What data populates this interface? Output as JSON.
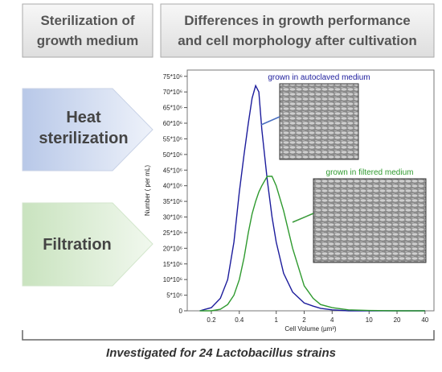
{
  "headers": {
    "left": [
      "Sterilization of",
      "growth medium"
    ],
    "right": [
      "Differences in growth performance",
      "and cell morphology after cultivation"
    ]
  },
  "methods": [
    {
      "label": [
        "Heat",
        "sterilization"
      ]
    },
    {
      "label": [
        "Filtration"
      ]
    }
  ],
  "footer": "Investigated for 24 Lactobacillus strains",
  "chart_data": {
    "type": "line",
    "xlabel": "Cell Volume (µm³)",
    "ylabel": "Number ( per mL)",
    "xscale": "log",
    "x": [
      0.15,
      0.2,
      0.25,
      0.3,
      0.35,
      0.4,
      0.45,
      0.5,
      0.55,
      0.6,
      0.65,
      0.7,
      0.8,
      0.9,
      1,
      1.2,
      1.5,
      2,
      2.5,
      3,
      4,
      6,
      10,
      20,
      40
    ],
    "series": [
      {
        "name": "grown in autoclaved medium",
        "color": "#1c1c9c",
        "values": [
          0,
          1000000,
          4000000,
          10000000,
          22000000,
          38000000,
          50000000,
          60000000,
          68000000,
          72000000,
          70000000,
          58000000,
          42000000,
          30000000,
          22000000,
          12000000,
          6000000,
          2500000,
          1500000,
          800000,
          300000,
          0,
          0,
          0,
          0
        ]
      },
      {
        "name": "grown in filtered medium",
        "color": "#2f9a2f",
        "values": [
          0,
          0,
          500000,
          2000000,
          5000000,
          10000000,
          17000000,
          25000000,
          31000000,
          35000000,
          38000000,
          40000000,
          43000000,
          43000000,
          40000000,
          32000000,
          20000000,
          8000000,
          4000000,
          2000000,
          1000000,
          300000,
          100000,
          0,
          0
        ]
      }
    ],
    "xlim": [
      0.11,
      50
    ],
    "xticks": [
      0.2,
      0.4,
      1,
      2,
      4,
      10,
      20,
      40
    ],
    "ylim": [
      0,
      77000000
    ],
    "yticks": [
      {
        "value": 0,
        "label": "0"
      },
      {
        "value": 5000000,
        "label": "5*10⁶"
      },
      {
        "value": 10000000,
        "label": "10*10⁶"
      },
      {
        "value": 15000000,
        "label": "15*10⁶"
      },
      {
        "value": 20000000,
        "label": "20*10⁶"
      },
      {
        "value": 25000000,
        "label": "25*10⁶"
      },
      {
        "value": 30000000,
        "label": "30*10⁶"
      },
      {
        "value": 35000000,
        "label": "35*10⁶"
      },
      {
        "value": 40000000,
        "label": "40*10⁶"
      },
      {
        "value": 45000000,
        "label": "45*10⁶"
      },
      {
        "value": 50000000,
        "label": "50*10⁶"
      },
      {
        "value": 55000000,
        "label": "55*10⁶"
      },
      {
        "value": 60000000,
        "label": "60*10⁶"
      },
      {
        "value": 65000000,
        "label": "65*10⁶"
      },
      {
        "value": 70000000,
        "label": "70*10⁶"
      },
      {
        "value": 75000000,
        "label": "75*10⁶"
      }
    ]
  }
}
